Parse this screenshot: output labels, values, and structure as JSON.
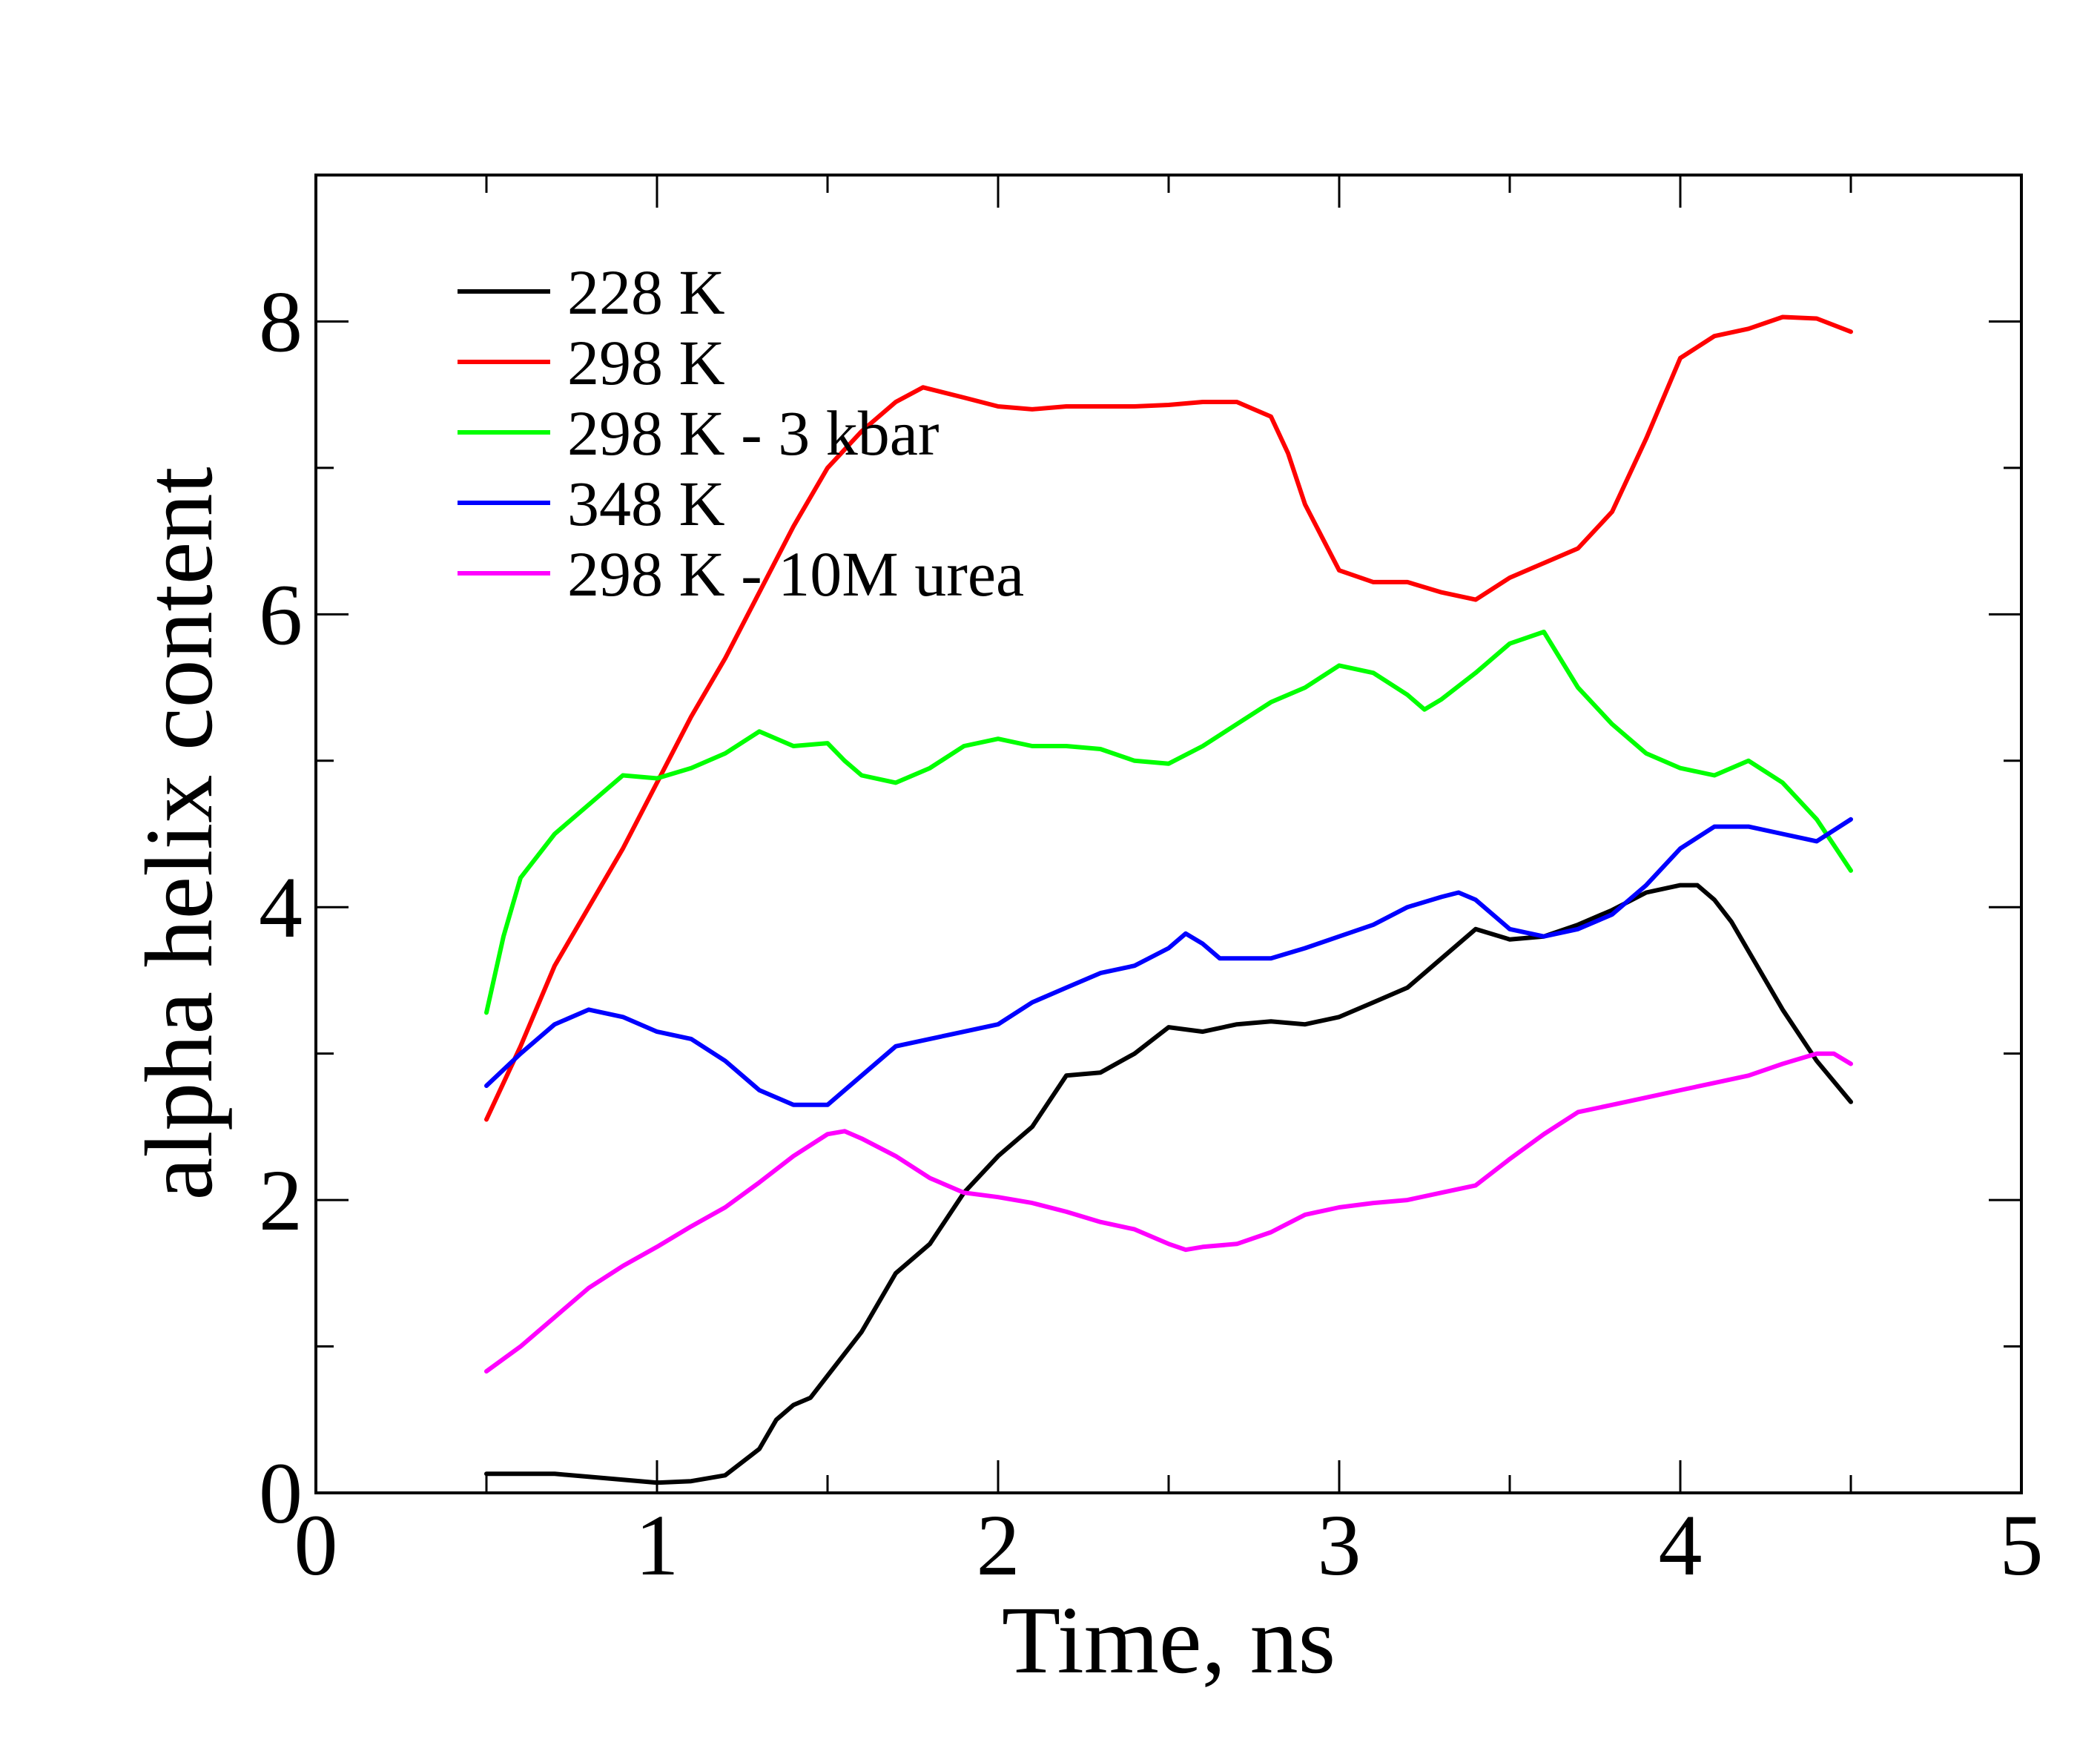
{
  "chart_data": {
    "type": "line",
    "title": "",
    "xlabel": "Time, ns",
    "ylabel": "alpha helix content",
    "xlim": [
      0,
      5
    ],
    "ylim": [
      0,
      9
    ],
    "x_ticks": [
      0,
      1,
      2,
      3,
      4,
      5
    ],
    "x_tick_labels": [
      "0",
      "1",
      "2",
      "3",
      "4",
      "5"
    ],
    "y_ticks": [
      0,
      2,
      4,
      6,
      8
    ],
    "y_tick_labels": [
      "0",
      "2",
      "4",
      "6",
      "8"
    ],
    "x_minor_ticks": [
      0.5,
      1.5,
      2.5,
      3.5,
      4.5
    ],
    "y_minor_ticks": [
      1,
      3,
      5,
      7
    ],
    "grid": false,
    "legend_position": "top-left",
    "series": [
      {
        "name": "228 K",
        "color": "#000000",
        "x": [
          0.5,
          0.6,
          0.7,
          0.8,
          0.9,
          1.0,
          1.1,
          1.2,
          1.3,
          1.35,
          1.4,
          1.45,
          1.5,
          1.55,
          1.6,
          1.7,
          1.8,
          1.9,
          2.0,
          2.1,
          2.2,
          2.3,
          2.4,
          2.5,
          2.6,
          2.7,
          2.8,
          2.9,
          3.0,
          3.1,
          3.2,
          3.3,
          3.4,
          3.5,
          3.6,
          3.7,
          3.8,
          3.9,
          4.0,
          4.05,
          4.1,
          4.15,
          4.2,
          4.3,
          4.4,
          4.5
        ],
        "y": [
          0.13,
          0.13,
          0.13,
          0.11,
          0.09,
          0.07,
          0.08,
          0.12,
          0.3,
          0.5,
          0.6,
          0.65,
          0.8,
          0.95,
          1.1,
          1.5,
          1.7,
          2.05,
          2.3,
          2.5,
          2.85,
          2.87,
          3.0,
          3.18,
          3.15,
          3.2,
          3.22,
          3.2,
          3.25,
          3.35,
          3.45,
          3.65,
          3.85,
          3.78,
          3.8,
          3.88,
          3.98,
          4.1,
          4.15,
          4.15,
          4.05,
          3.9,
          3.7,
          3.3,
          2.95,
          2.67
        ]
      },
      {
        "name": "298 K",
        "color": "#ff0000",
        "x": [
          0.5,
          0.6,
          0.7,
          0.8,
          0.9,
          1.0,
          1.1,
          1.2,
          1.3,
          1.4,
          1.5,
          1.6,
          1.7,
          1.78,
          1.9,
          2.0,
          2.1,
          2.2,
          2.3,
          2.4,
          2.5,
          2.6,
          2.7,
          2.8,
          2.85,
          2.9,
          3.0,
          3.1,
          3.2,
          3.3,
          3.4,
          3.5,
          3.6,
          3.7,
          3.8,
          3.9,
          4.0,
          4.1,
          4.2,
          4.3,
          4.4,
          4.5
        ],
        "y": [
          2.55,
          3.05,
          3.6,
          4.0,
          4.4,
          4.85,
          5.3,
          5.7,
          6.15,
          6.6,
          7.0,
          7.25,
          7.45,
          7.55,
          7.48,
          7.42,
          7.4,
          7.42,
          7.42,
          7.42,
          7.43,
          7.45,
          7.45,
          7.35,
          7.1,
          6.75,
          6.3,
          6.22,
          6.22,
          6.15,
          6.1,
          6.25,
          6.35,
          6.45,
          6.7,
          7.2,
          7.75,
          7.9,
          7.95,
          8.03,
          8.02,
          7.93
        ]
      },
      {
        "name": "298 K - 3 kbar",
        "color": "#00ff00",
        "x": [
          0.5,
          0.55,
          0.6,
          0.7,
          0.8,
          0.9,
          1.0,
          1.1,
          1.2,
          1.3,
          1.4,
          1.5,
          1.55,
          1.6,
          1.7,
          1.8,
          1.9,
          2.0,
          2.1,
          2.2,
          2.3,
          2.4,
          2.5,
          2.6,
          2.7,
          2.8,
          2.9,
          3.0,
          3.1,
          3.2,
          3.25,
          3.3,
          3.4,
          3.5,
          3.6,
          3.7,
          3.8,
          3.9,
          4.0,
          4.1,
          4.2,
          4.3,
          4.4,
          4.5
        ],
        "y": [
          3.28,
          3.8,
          4.2,
          4.5,
          4.7,
          4.9,
          4.88,
          4.95,
          5.05,
          5.2,
          5.1,
          5.12,
          5.0,
          4.9,
          4.85,
          4.95,
          5.1,
          5.15,
          5.1,
          5.1,
          5.08,
          5.0,
          4.98,
          5.1,
          5.25,
          5.4,
          5.5,
          5.65,
          5.6,
          5.45,
          5.35,
          5.42,
          5.6,
          5.8,
          5.88,
          5.5,
          5.25,
          5.05,
          4.95,
          4.9,
          5.0,
          4.85,
          4.6,
          4.25
        ]
      },
      {
        "name": "348 K",
        "color": "#0000ff",
        "x": [
          0.5,
          0.6,
          0.7,
          0.8,
          0.9,
          1.0,
          1.1,
          1.2,
          1.3,
          1.4,
          1.5,
          1.6,
          1.7,
          1.8,
          1.9,
          2.0,
          2.1,
          2.2,
          2.3,
          2.4,
          2.5,
          2.55,
          2.6,
          2.65,
          2.7,
          2.8,
          2.9,
          3.0,
          3.1,
          3.2,
          3.3,
          3.35,
          3.4,
          3.5,
          3.6,
          3.7,
          3.8,
          3.9,
          4.0,
          4.1,
          4.2,
          4.3,
          4.4,
          4.5
        ],
        "y": [
          2.78,
          3.0,
          3.2,
          3.3,
          3.25,
          3.15,
          3.1,
          2.95,
          2.75,
          2.65,
          2.65,
          2.85,
          3.05,
          3.1,
          3.15,
          3.2,
          3.35,
          3.45,
          3.55,
          3.6,
          3.72,
          3.82,
          3.75,
          3.65,
          3.65,
          3.65,
          3.72,
          3.8,
          3.88,
          4.0,
          4.07,
          4.1,
          4.05,
          3.85,
          3.8,
          3.85,
          3.95,
          4.15,
          4.4,
          4.55,
          4.55,
          4.5,
          4.45,
          4.6
        ]
      },
      {
        "name": "298 K - 10M urea",
        "color": "#ff00ff",
        "x": [
          0.5,
          0.6,
          0.7,
          0.8,
          0.9,
          1.0,
          1.1,
          1.2,
          1.3,
          1.4,
          1.5,
          1.55,
          1.6,
          1.7,
          1.8,
          1.9,
          2.0,
          2.1,
          2.2,
          2.3,
          2.4,
          2.5,
          2.55,
          2.6,
          2.7,
          2.8,
          2.9,
          3.0,
          3.1,
          3.2,
          3.3,
          3.4,
          3.5,
          3.6,
          3.7,
          3.8,
          3.9,
          4.0,
          4.1,
          4.2,
          4.3,
          4.4,
          4.45,
          4.5
        ],
        "y": [
          0.83,
          1.0,
          1.2,
          1.4,
          1.55,
          1.68,
          1.82,
          1.95,
          2.12,
          2.3,
          2.45,
          2.47,
          2.42,
          2.3,
          2.15,
          2.05,
          2.02,
          1.98,
          1.92,
          1.85,
          1.8,
          1.7,
          1.66,
          1.68,
          1.7,
          1.78,
          1.9,
          1.95,
          1.98,
          2.0,
          2.05,
          2.1,
          2.28,
          2.45,
          2.6,
          2.65,
          2.7,
          2.75,
          2.8,
          2.85,
          2.93,
          3.0,
          3.0,
          2.93
        ]
      }
    ]
  }
}
